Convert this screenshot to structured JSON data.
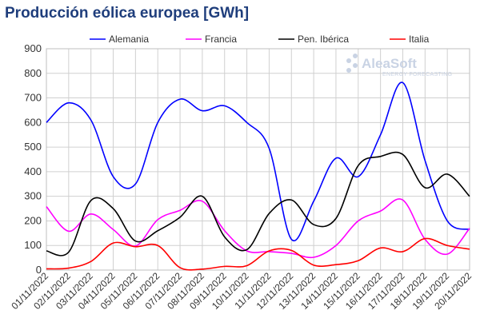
{
  "title": "Producción eólica europea [GWh]",
  "logo": {
    "name": "AleaSoft",
    "tagline": "ENERGY FORECASTING"
  },
  "chart_data": {
    "type": "line",
    "title": "Producción eólica europea [GWh]",
    "xlabel": "",
    "ylabel": "",
    "ylim": [
      0,
      900
    ],
    "yticks": [
      0,
      100,
      200,
      300,
      400,
      500,
      600,
      700,
      800,
      900
    ],
    "grid": true,
    "legend_position": "top",
    "categories": [
      "01/11/2022",
      "02/11/2022",
      "03/11/2022",
      "04/11/2022",
      "05/11/2022",
      "06/11/2022",
      "07/11/2022",
      "08/11/2022",
      "09/11/2022",
      "10/11/2022",
      "11/11/2022",
      "12/11/2022",
      "13/11/2022",
      "14/11/2022",
      "15/11/2022",
      "16/11/2022",
      "17/11/2022",
      "18/11/2022",
      "19/11/2022",
      "20/11/2022"
    ],
    "series": [
      {
        "name": "Alemania",
        "color": "#0000ff",
        "values": [
          600,
          680,
          610,
          380,
          350,
          600,
          695,
          648,
          668,
          600,
          495,
          125,
          280,
          455,
          380,
          550,
          762,
          445,
          200,
          165
        ]
      },
      {
        "name": "Francia",
        "color": "#ff00ff",
        "values": [
          258,
          158,
          228,
          165,
          98,
          205,
          243,
          280,
          160,
          78,
          75,
          68,
          52,
          100,
          200,
          240,
          285,
          125,
          65,
          170
        ]
      },
      {
        "name": "Pen. Ibérica",
        "color": "#000000",
        "values": [
          78,
          73,
          283,
          250,
          118,
          160,
          215,
          300,
          135,
          83,
          230,
          285,
          185,
          210,
          425,
          462,
          470,
          335,
          390,
          300
        ]
      },
      {
        "name": "Italia",
        "color": "#ff0000",
        "values": [
          5,
          8,
          35,
          110,
          95,
          100,
          10,
          4,
          15,
          18,
          78,
          80,
          20,
          22,
          38,
          90,
          75,
          128,
          100,
          85
        ]
      }
    ]
  }
}
